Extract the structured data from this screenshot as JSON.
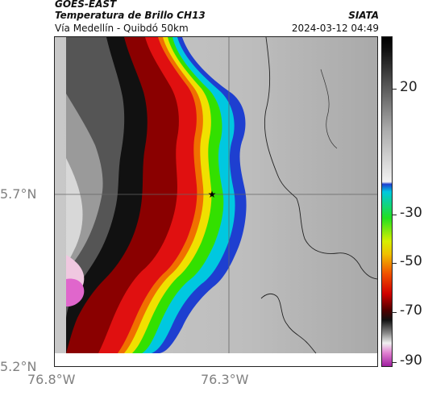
{
  "header": {
    "satellite": "GOES-EAST",
    "product": "Temperatura de Brillo CH13",
    "route": "Vía Medellín - Quibdó 50km",
    "org": "SIATA",
    "datetime": "2024-03-12 04:49"
  },
  "axes": {
    "lat_ticks": [
      "5.7°N",
      "5.2°N"
    ],
    "lon_ticks": [
      "76.8°W",
      "76.3°W"
    ]
  },
  "colorbar": {
    "ticks": [
      "20",
      "-30",
      "-50",
      "-70",
      "-90"
    ]
  },
  "marker": {
    "symbol": "★"
  }
}
